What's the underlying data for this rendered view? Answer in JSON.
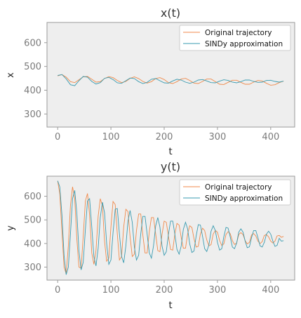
{
  "colors": {
    "original": "#f08a4b",
    "sindy": "#3a9bb0",
    "axes_bg": "#eeeeee"
  },
  "chart_data": [
    {
      "type": "line",
      "title": "x(t)",
      "xlabel": "t",
      "ylabel": "x",
      "xlim": [
        -20,
        445
      ],
      "ylim": [
        245,
        685
      ],
      "xticks": [
        0,
        100,
        200,
        300,
        400
      ],
      "yticks": [
        300,
        400,
        500,
        600
      ],
      "grid": false,
      "legend": "top-right",
      "series": [
        {
          "name": "Original trajectory",
          "color": "#f08a4b",
          "x": [
            0,
            8,
            16,
            24,
            32,
            40,
            48,
            56,
            64,
            72,
            80,
            88,
            96,
            104,
            112,
            120,
            128,
            136,
            144,
            152,
            160,
            168,
            176,
            184,
            192,
            200,
            208,
            216,
            224,
            232,
            240,
            248,
            256,
            264,
            272,
            280,
            288,
            296,
            304,
            312,
            320,
            328,
            336,
            344,
            352,
            360,
            368,
            376,
            384,
            392,
            400,
            408,
            416,
            424
          ],
          "values": [
            460,
            466,
            455,
            436,
            432,
            444,
            456,
            458,
            446,
            434,
            436,
            449,
            457,
            453,
            441,
            432,
            437,
            450,
            456,
            449,
            437,
            430,
            436,
            449,
            453,
            445,
            432,
            428,
            436,
            447,
            450,
            441,
            430,
            428,
            437,
            447,
            447,
            436,
            425,
            424,
            433,
            442,
            442,
            433,
            425,
            425,
            434,
            441,
            439,
            429,
            421,
            423,
            432,
            438
          ]
        },
        {
          "name": "SINDy approximation",
          "color": "#3a9bb0",
          "x": [
            0,
            8,
            16,
            24,
            32,
            40,
            48,
            56,
            64,
            72,
            80,
            88,
            96,
            104,
            112,
            120,
            128,
            136,
            144,
            152,
            160,
            168,
            176,
            184,
            192,
            200,
            208,
            216,
            224,
            232,
            240,
            248,
            256,
            264,
            272,
            280,
            288,
            296,
            304,
            312,
            320,
            328,
            336,
            344,
            352,
            360,
            368,
            376,
            384,
            392,
            400,
            408,
            416,
            424
          ],
          "values": [
            462,
            466,
            448,
            423,
            419,
            440,
            458,
            455,
            437,
            426,
            432,
            450,
            454,
            445,
            431,
            429,
            440,
            451,
            449,
            436,
            428,
            433,
            446,
            449,
            440,
            431,
            430,
            439,
            446,
            443,
            434,
            429,
            434,
            443,
            445,
            439,
            432,
            431,
            438,
            444,
            441,
            434,
            431,
            436,
            443,
            443,
            437,
            433,
            434,
            441,
            442,
            437,
            434,
            438
          ]
        }
      ]
    },
    {
      "type": "line",
      "title": "y(t)",
      "xlabel": "t",
      "ylabel": "y",
      "xlim": [
        -20,
        445
      ],
      "ylim": [
        245,
        685
      ],
      "xticks": [
        0,
        100,
        200,
        300,
        400
      ],
      "yticks": [
        300,
        400,
        500,
        600
      ],
      "grid": false,
      "legend": "top-right",
      "series": [
        {
          "name": "Original trajectory",
          "color": "#f08a4b",
          "x": [
            0,
            4,
            8,
            12,
            16,
            20,
            24,
            28,
            32,
            36,
            40,
            44,
            48,
            52,
            56,
            60,
            64,
            68,
            72,
            76,
            80,
            84,
            88,
            92,
            96,
            100,
            104,
            108,
            112,
            116,
            120,
            124,
            128,
            132,
            136,
            140,
            144,
            148,
            152,
            156,
            160,
            164,
            168,
            172,
            176,
            180,
            184,
            188,
            192,
            196,
            200,
            204,
            208,
            212,
            216,
            220,
            224,
            228,
            232,
            236,
            240,
            244,
            248,
            252,
            256,
            260,
            264,
            268,
            272,
            276,
            280,
            284,
            288,
            292,
            296,
            300,
            304,
            308,
            312,
            316,
            320,
            324,
            328,
            332,
            336,
            340,
            344,
            348,
            352,
            356,
            360,
            364,
            368,
            372,
            376,
            380,
            384,
            388,
            392,
            396,
            400,
            404,
            408,
            412,
            416,
            420,
            424
          ],
          "values": [
            665,
            610,
            450,
            300,
            272,
            390,
            560,
            640,
            590,
            420,
            300,
            295,
            430,
            580,
            612,
            520,
            360,
            312,
            370,
            515,
            590,
            560,
            410,
            325,
            338,
            470,
            578,
            565,
            440,
            330,
            345,
            470,
            545,
            535,
            430,
            345,
            355,
            455,
            525,
            525,
            435,
            360,
            360,
            450,
            510,
            510,
            440,
            370,
            365,
            440,
            495,
            490,
            430,
            375,
            372,
            440,
            485,
            478,
            425,
            380,
            380,
            440,
            475,
            468,
            420,
            385,
            388,
            440,
            465,
            455,
            415,
            390,
            395,
            440,
            455,
            448,
            413,
            392,
            398,
            438,
            450,
            442,
            412,
            396,
            402,
            438,
            446,
            438,
            412,
            398,
            405,
            436,
            442,
            432,
            410,
            400,
            408,
            434,
            438,
            428,
            410,
            402,
            410,
            432,
            434,
            426,
            430
          ]
        },
        {
          "name": "SINDy approximation",
          "color": "#3a9bb0",
          "x": [
            0,
            4,
            8,
            12,
            16,
            20,
            24,
            28,
            32,
            36,
            40,
            44,
            48,
            52,
            56,
            60,
            64,
            68,
            72,
            76,
            80,
            84,
            88,
            92,
            96,
            100,
            104,
            108,
            112,
            116,
            120,
            124,
            128,
            132,
            136,
            140,
            144,
            148,
            152,
            156,
            160,
            164,
            168,
            172,
            176,
            180,
            184,
            188,
            192,
            196,
            200,
            204,
            208,
            212,
            216,
            220,
            224,
            228,
            232,
            236,
            240,
            244,
            248,
            252,
            256,
            260,
            264,
            268,
            272,
            276,
            280,
            284,
            288,
            292,
            296,
            300,
            304,
            308,
            312,
            316,
            320,
            324,
            328,
            332,
            336,
            340,
            344,
            348,
            352,
            356,
            360,
            364,
            368,
            372,
            376,
            380,
            384,
            388,
            392,
            396,
            400,
            404,
            408,
            412,
            416,
            420,
            424
          ],
          "values": [
            665,
            640,
            520,
            350,
            268,
            300,
            440,
            590,
            625,
            530,
            370,
            288,
            320,
            460,
            580,
            590,
            470,
            345,
            305,
            380,
            510,
            575,
            530,
            400,
            312,
            330,
            445,
            545,
            548,
            440,
            345,
            318,
            390,
            495,
            540,
            490,
            385,
            330,
            350,
            440,
            515,
            515,
            440,
            360,
            338,
            390,
            475,
            510,
            470,
            388,
            350,
            365,
            440,
            495,
            495,
            440,
            375,
            355,
            390,
            460,
            490,
            462,
            398,
            362,
            368,
            432,
            480,
            478,
            430,
            378,
            366,
            395,
            452,
            475,
            455,
            405,
            372,
            378,
            428,
            468,
            465,
            428,
            385,
            378,
            402,
            448,
            462,
            448,
            410,
            382,
            386,
            425,
            455,
            455,
            425,
            390,
            385,
            405,
            440,
            452,
            440,
            410,
            388,
            392,
            422,
            410,
            412
          ]
        }
      ]
    }
  ]
}
